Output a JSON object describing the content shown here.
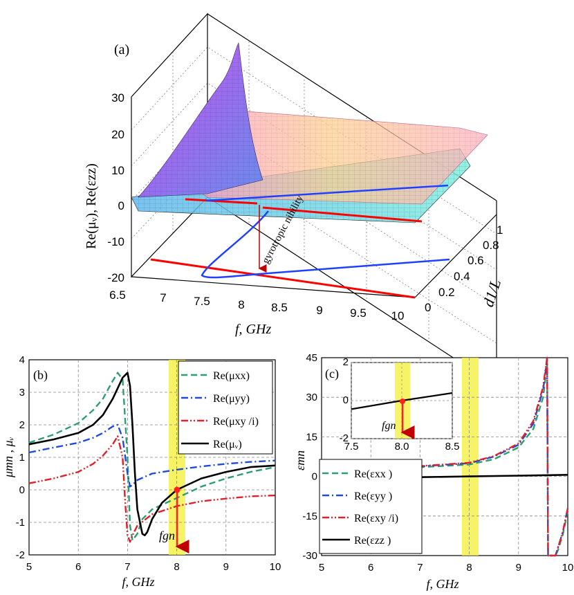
{
  "panel_a": {
    "label": "(a)",
    "zlabel": "Re(μᵥ), Re(εzz)",
    "xlabel": "f, GHz",
    "ylabel": "d1/L",
    "annotation": "gyrotropic nihility",
    "colors": {
      "mu_surface": "#c05ce0",
      "eps_surface": "#ff9ec0",
      "cyan_plane": "#6fe3f0",
      "red": "#ff0000",
      "blue": "#2040ff",
      "arrow": "#c00000"
    }
  },
  "panel_b": {
    "label": "(b)",
    "xlabel": "f, GHz",
    "ylabel": "μmn , μᵥ",
    "marker_label": "fgn",
    "legend": [
      "Re(μxx)",
      "Re(μyy)",
      "Re(μxy /i)",
      "Re(μᵥ)"
    ]
  },
  "panel_c": {
    "label": "(c)",
    "xlabel": "f, GHz",
    "ylabel": "εmn",
    "marker_label": "fgn",
    "legend": [
      "Re(εxx )",
      "Re(εyy )",
      "Re(εxy /i)",
      "Re(εzz )"
    ]
  },
  "chart_data": [
    {
      "type": "surface3d",
      "panel": "a",
      "x_axis": {
        "label": "f, GHz",
        "range": [
          6.5,
          10
        ],
        "ticks": [
          "6.5",
          "7",
          "7.5",
          "8",
          "8.5",
          "9",
          "9.5",
          "10"
        ]
      },
      "y_axis": {
        "label": "d1/L",
        "range": [
          0,
          1
        ],
        "ticks": [
          "0",
          "0.2",
          "0.4",
          "0.6",
          "0.8",
          "1"
        ]
      },
      "z_axis": {
        "label": "Re(μᵥ), Re(εzz)",
        "range": [
          -20,
          30
        ],
        "ticks": [
          "-20",
          "-10",
          "0",
          "10",
          "20",
          "30"
        ]
      },
      "series": [
        {
          "name": "Re(μᵥ)",
          "kind": "surface",
          "peak_z": 33,
          "peak_f": 7.0
        },
        {
          "name": "Re(εzz)",
          "kind": "surface"
        }
      ],
      "nihility_point": {
        "f": 8.0,
        "d1_over_L": 0.2
      }
    },
    {
      "type": "line",
      "panel": "b",
      "xlabel": "f, GHz",
      "ylabel": "μmn , μᵥ",
      "xlim": [
        5,
        10
      ],
      "ylim": [
        -2,
        4
      ],
      "xticks": [
        5,
        6,
        7,
        8,
        9,
        10
      ],
      "yticks": [
        -2,
        -1,
        0,
        1,
        2,
        3,
        4
      ],
      "highlight_band": [
        7.85,
        8.15
      ],
      "marker": {
        "x": 8.0,
        "y": 0
      },
      "series": [
        {
          "name": "Re(μxx)",
          "style": "dashed",
          "color": "#2e9e6e",
          "x": [
            5,
            5.5,
            6,
            6.3,
            6.5,
            6.7,
            6.8,
            6.9,
            7.0,
            7.05,
            7.1,
            7.2,
            7.3,
            7.5,
            8,
            8.5,
            9,
            9.5,
            10
          ],
          "y": [
            1.45,
            1.7,
            2.05,
            2.45,
            2.8,
            3.35,
            3.6,
            3.4,
            1.0,
            -1.1,
            -1.55,
            -1.35,
            -0.9,
            -0.6,
            -0.25,
            0.1,
            0.35,
            0.55,
            0.7
          ]
        },
        {
          "name": "Re(μyy)",
          "style": "dashdot",
          "color": "#1f4bd8",
          "x": [
            5,
            5.5,
            6,
            6.3,
            6.5,
            6.7,
            6.8,
            6.9,
            7.0,
            7.05,
            7.1,
            7.2,
            7.5,
            8,
            8.5,
            9,
            9.5,
            10
          ],
          "y": [
            1.15,
            1.3,
            1.45,
            1.6,
            1.75,
            1.95,
            2.0,
            1.6,
            0.5,
            0.1,
            0.15,
            0.3,
            0.5,
            0.62,
            0.72,
            0.8,
            0.86,
            0.9
          ]
        },
        {
          "name": "Re(μxy /i)",
          "style": "dashdotdot",
          "color": "#e0202a",
          "x": [
            5,
            5.5,
            6,
            6.3,
            6.5,
            6.7,
            6.8,
            6.9,
            6.95,
            7.0,
            7.05,
            7.1,
            7.2,
            7.5,
            8,
            8.5,
            9,
            9.5,
            10
          ],
          "y": [
            0.2,
            0.35,
            0.55,
            0.8,
            1.05,
            1.4,
            1.65,
            1.0,
            -0.3,
            -1.4,
            -1.6,
            -1.4,
            -1.1,
            -0.75,
            -0.5,
            -0.35,
            -0.27,
            -0.2,
            -0.17
          ]
        },
        {
          "name": "Re(μᵥ)",
          "style": "solid",
          "color": "#000000",
          "x": [
            5,
            5.5,
            6,
            6.3,
            6.5,
            6.7,
            6.9,
            7.0,
            7.05,
            7.1,
            7.15,
            7.2,
            7.3,
            7.35,
            7.4,
            7.5,
            7.7,
            8,
            8.5,
            9,
            9.5,
            10
          ],
          "y": [
            1.4,
            1.55,
            1.75,
            2.0,
            2.3,
            2.8,
            3.45,
            3.6,
            3.2,
            2.0,
            0.5,
            -0.6,
            -1.35,
            -1.4,
            -1.3,
            -0.9,
            -0.4,
            0.0,
            0.35,
            0.55,
            0.7,
            0.75
          ]
        }
      ]
    },
    {
      "type": "line",
      "panel": "c",
      "xlabel": "f, GHz",
      "ylabel": "εmn",
      "xlim": [
        5,
        10
      ],
      "ylim": [
        -30,
        45
      ],
      "xticks": [
        5,
        6,
        7,
        8,
        9,
        10
      ],
      "yticks": [
        -30,
        -15,
        0,
        15,
        30,
        45
      ],
      "highlight_band": [
        7.85,
        8.15
      ],
      "series": [
        {
          "name": "Re(εxx )",
          "style": "dashed",
          "color": "#2e9e6e",
          "x": [
            5,
            6,
            7,
            8,
            8.5,
            9,
            9.3,
            9.5,
            9.55,
            9.58,
            9.6,
            9.62,
            9.65,
            9.7,
            9.75,
            9.8,
            9.9,
            10
          ],
          "y": [
            2.5,
            3.0,
            3.5,
            4.5,
            6.5,
            11,
            18,
            30,
            38,
            45,
            -30,
            -30,
            -30,
            -30,
            -30,
            -28,
            -22,
            -13
          ]
        },
        {
          "name": "Re(εyy )",
          "style": "dashdot",
          "color": "#1f4bd8",
          "x": [
            5,
            6,
            7,
            8,
            8.5,
            9,
            9.3,
            9.5,
            9.55,
            9.58,
            9.6,
            9.62,
            9.65,
            9.7,
            9.75,
            9.8,
            9.9,
            10
          ],
          "y": [
            2.7,
            3.2,
            3.8,
            5.0,
            7.5,
            12,
            20,
            33,
            40,
            45,
            -30,
            -30,
            -30,
            -30,
            -30,
            -27,
            -21,
            -12
          ]
        },
        {
          "name": "Re(εxy /i)",
          "style": "dashdotdot",
          "color": "#e0202a",
          "x": [
            5,
            6,
            7,
            8,
            8.5,
            9,
            9.3,
            9.5,
            9.55,
            9.58,
            9.6,
            9.62,
            9.65,
            9.7,
            9.75,
            9.8,
            9.9,
            10
          ],
          "y": [
            2.8,
            3.3,
            3.9,
            5.2,
            7.7,
            12.5,
            21,
            34,
            41,
            45,
            -30,
            -30,
            -30,
            -30,
            -30,
            -27,
            -21,
            -12
          ]
        },
        {
          "name": "Re(εzz )",
          "style": "solid",
          "color": "#000000",
          "x": [
            5,
            6,
            7,
            8,
            9,
            10
          ],
          "y": [
            -1.2,
            -0.7,
            -0.3,
            0.0,
            0.3,
            0.6
          ]
        }
      ],
      "inset": {
        "xlim": [
          7.5,
          8.5
        ],
        "ylim": [
          -2,
          2
        ],
        "xticks": [
          "7.5",
          "8.0",
          "8.5"
        ],
        "yticks": [
          "-2",
          "0",
          "2"
        ],
        "highlight_band": [
          7.85,
          8.15
        ],
        "marker": {
          "x": 8.0,
          "y": 0
        },
        "series": [
          {
            "name": "Re(εzz )",
            "x": [
              7.5,
              8.0,
              8.5
            ],
            "y": [
              -0.45,
              0,
              0.4
            ]
          }
        ]
      }
    }
  ]
}
